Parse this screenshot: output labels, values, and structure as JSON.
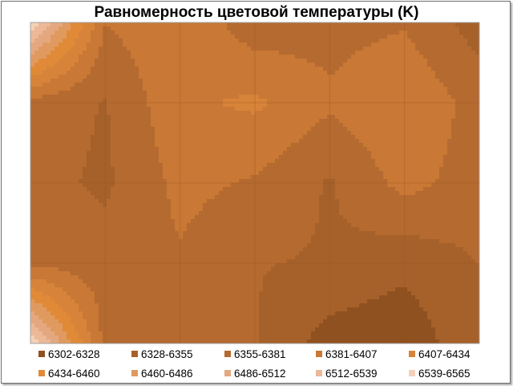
{
  "chart_data": {
    "type": "contour",
    "title": "Равномерность цветовой температуры (K)",
    "xlabel": "",
    "ylabel": "",
    "x": [
      0,
      1,
      2,
      3,
      4,
      5,
      6
    ],
    "y": [
      0,
      1,
      2,
      3,
      4
    ],
    "z": [
      [
        6565,
        6381,
        6404,
        6365,
        6372,
        6378,
        6342
      ],
      [
        6372,
        6353,
        6402,
        6412,
        6385,
        6405,
        6370
      ],
      [
        6363,
        6350,
        6388,
        6378,
        6352,
        6390,
        6368
      ],
      [
        6375,
        6365,
        6378,
        6356,
        6352,
        6336,
        6355
      ],
      [
        6565,
        6372,
        6372,
        6356,
        6315,
        6308,
        6352
      ]
    ],
    "z_range": [
      6302,
      6565
    ],
    "grid": true,
    "legend": {
      "placement": "bottom",
      "entries": [
        {
          "label": "6302-6328",
          "color": "#8f5120"
        },
        {
          "label": "6328-6355",
          "color": "#a6612a"
        },
        {
          "label": "6355-6381",
          "color": "#b56a30"
        },
        {
          "label": "6381-6407",
          "color": "#c97835"
        },
        {
          "label": "6407-6434",
          "color": "#d7843a"
        },
        {
          "label": "6434-6460",
          "color": "#e08a38"
        },
        {
          "label": "6460-6486",
          "color": "#e09a60"
        },
        {
          "label": "6486-6512",
          "color": "#e4a880"
        },
        {
          "label": "6512-6539",
          "color": "#ecb896"
        },
        {
          "label": "6539-6565",
          "color": "#f4d0b8"
        }
      ]
    }
  }
}
